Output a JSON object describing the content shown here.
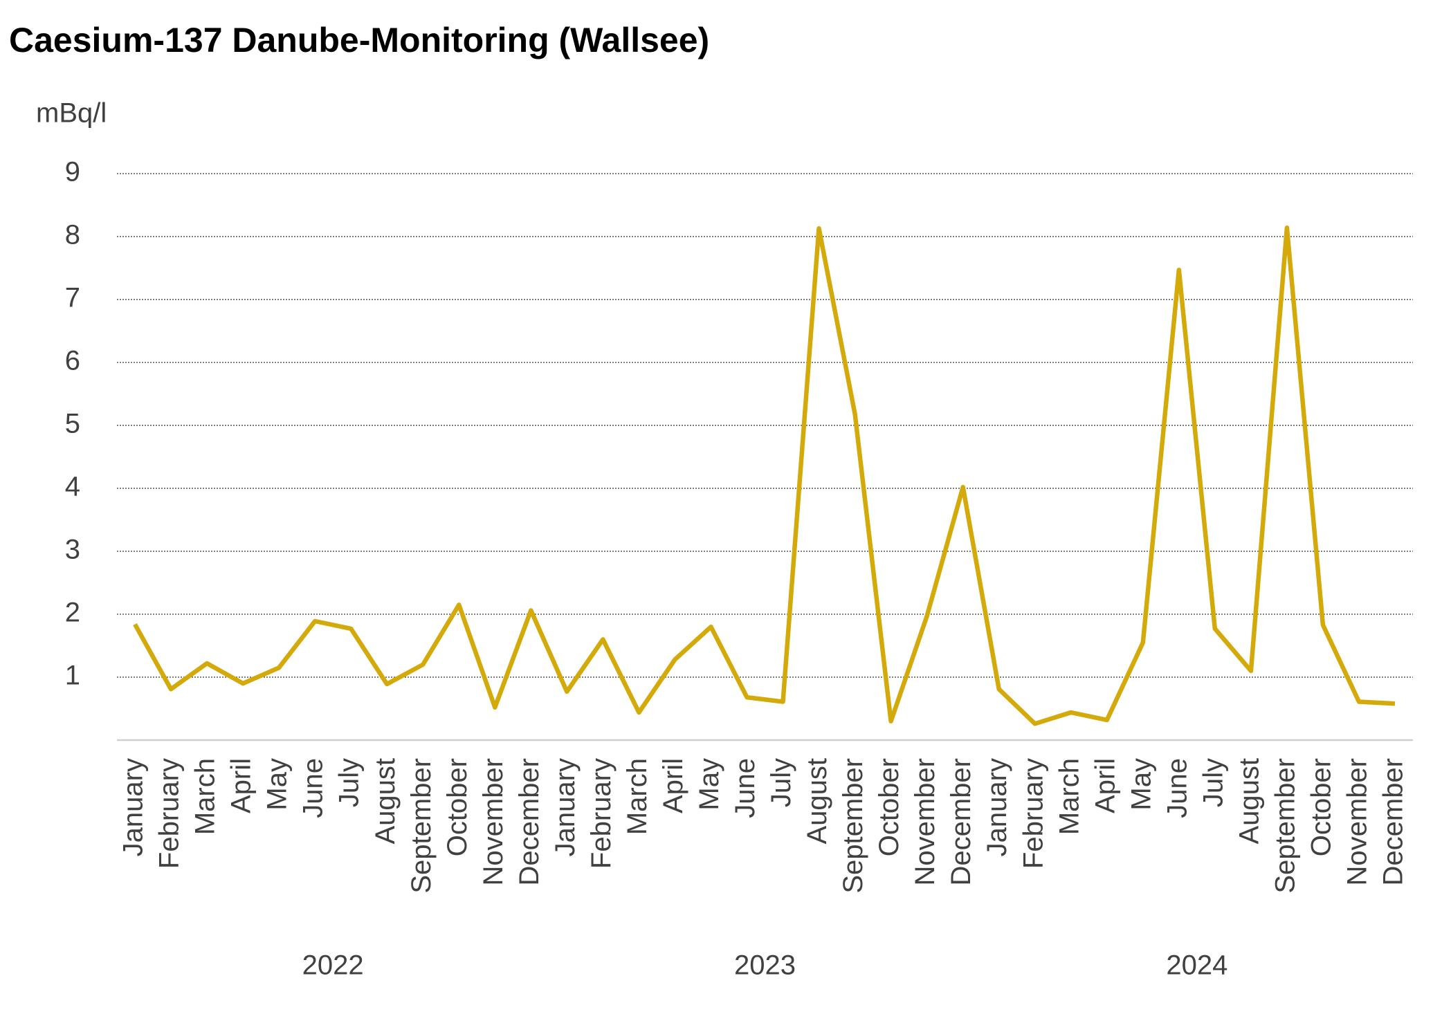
{
  "chart_data": {
    "type": "line",
    "title": "Caesium-137 Danube-Monitoring (Wallsee)",
    "y_label": "mBq/l",
    "categories": [
      "January",
      "February",
      "March",
      "April",
      "May",
      "June",
      "July",
      "August",
      "September",
      "October",
      "November",
      "December",
      "January",
      "February",
      "March",
      "April",
      "May",
      "June",
      "July",
      "August",
      "September",
      "October",
      "November",
      "December",
      "January",
      "February",
      "March",
      "April",
      "May",
      "June",
      "July",
      "August",
      "September",
      "October",
      "November",
      "December"
    ],
    "x_groups": [
      "2022",
      "2023",
      "2024"
    ],
    "values": [
      1.84,
      0.81,
      1.22,
      0.9,
      1.15,
      1.89,
      1.77,
      0.89,
      1.2,
      2.15,
      0.52,
      2.06,
      0.77,
      1.6,
      0.44,
      1.28,
      1.8,
      0.68,
      0.61,
      8.13,
      5.18,
      0.3,
      1.97,
      4.02,
      0.81,
      0.26,
      0.44,
      0.32,
      1.55,
      7.47,
      1.77,
      1.1,
      8.14,
      1.83,
      0.61,
      0.58
    ],
    "color": "#d4a90a",
    "ylim": [
      0,
      9
    ],
    "yticks": [
      1,
      2,
      3,
      4,
      5,
      6,
      7,
      8,
      9
    ],
    "grid": true
  }
}
